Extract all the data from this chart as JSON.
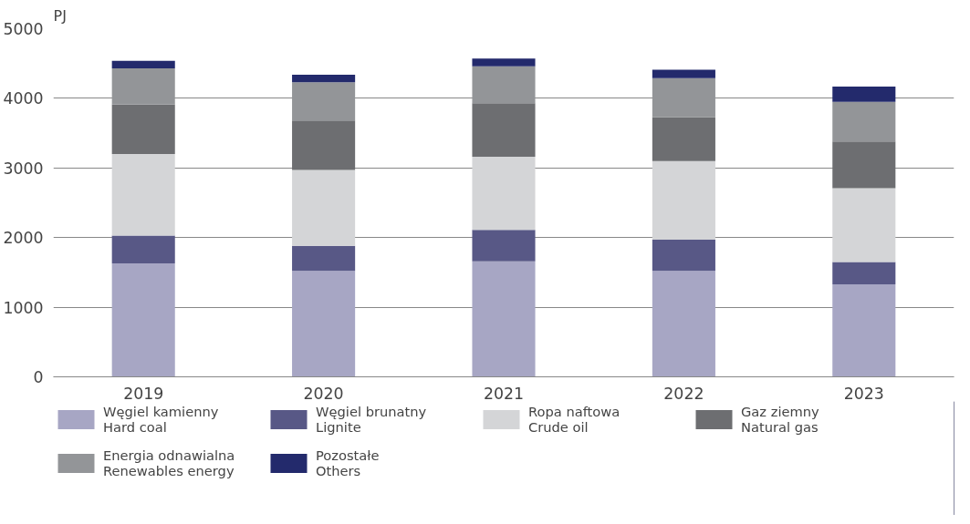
{
  "chart_data": {
    "type": "bar",
    "stacked": true,
    "ylabel": "PJ",
    "categories": [
      "2019",
      "2020",
      "2021",
      "2022",
      "2023"
    ],
    "series": [
      {
        "name": "Węgiel kamienny\nHard coal",
        "color": "#a7a6c4",
        "values": [
          1630,
          1520,
          1660,
          1520,
          1330
        ]
      },
      {
        "name": "Węgiel brunatny\nLignite",
        "color": "#585886",
        "values": [
          400,
          360,
          450,
          450,
          320
        ]
      },
      {
        "name": "Ropa naftowa\nCrude oil",
        "color": "#d4d5d7",
        "values": [
          1170,
          1090,
          1050,
          1130,
          1060
        ]
      },
      {
        "name": "Gaz ziemny\nNatural gas",
        "color": "#6d6e71",
        "values": [
          710,
          710,
          770,
          630,
          670
        ]
      },
      {
        "name": "Energia odnawialna\nRenewables energy",
        "color": "#939598",
        "values": [
          520,
          550,
          530,
          560,
          570
        ]
      },
      {
        "name": "Pozostałe\nOthers",
        "color": "#232a6c",
        "values": [
          110,
          110,
          110,
          120,
          220
        ]
      }
    ],
    "ylim": [
      0,
      5000
    ],
    "yticks": [
      0,
      1000,
      2000,
      3000,
      4000,
      5000
    ],
    "grid": "y",
    "legend": "bottom"
  }
}
